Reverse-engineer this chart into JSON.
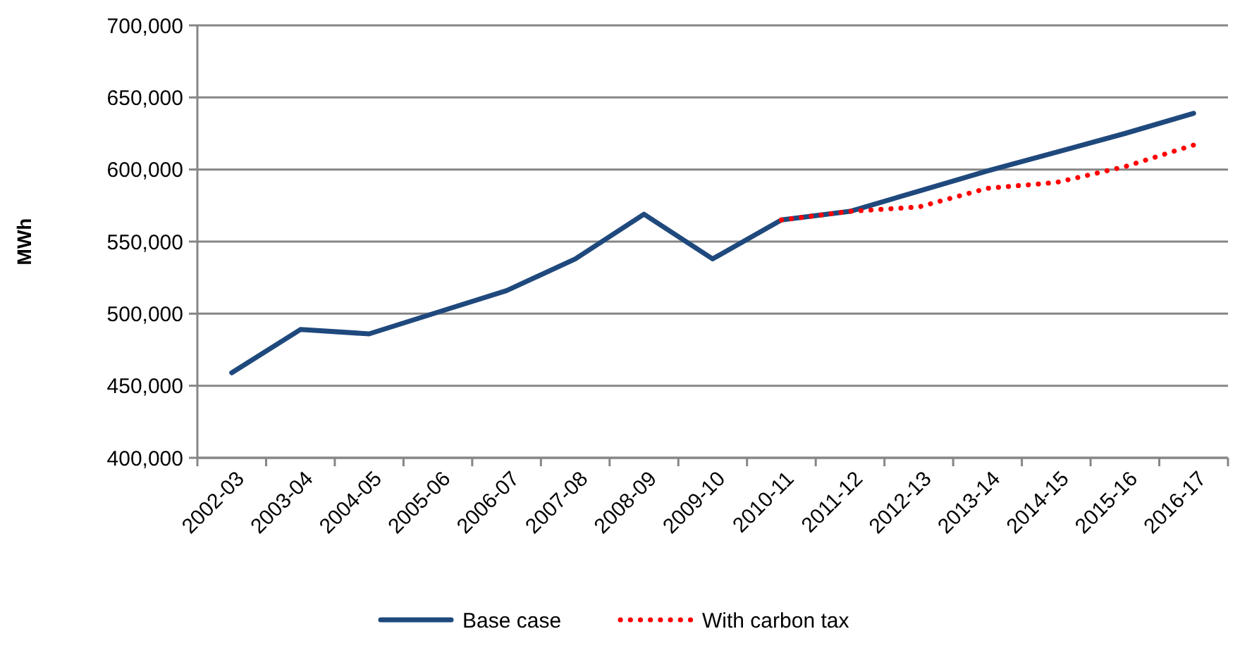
{
  "chart_data": {
    "type": "line",
    "ylabel": "MWh",
    "categories": [
      "2002-03",
      "2003-04",
      "2004-05",
      "2005-06",
      "2006-07",
      "2007-08",
      "2008-09",
      "2009-10",
      "2010-11",
      "2011-12",
      "2012-13",
      "2013-14",
      "2014-15",
      "2015-16",
      "2016-17"
    ],
    "series": [
      {
        "name": "Base case",
        "color": "#1f497d",
        "line_style": "solid",
        "values": [
          459000,
          489000,
          486000,
          501000,
          516000,
          538000,
          569000,
          538000,
          565000,
          571000,
          585000,
          599000,
          612000,
          625000,
          639000
        ]
      },
      {
        "name": "With carbon tax",
        "color": "#ff0000",
        "line_style": "dotted",
        "values": [
          null,
          null,
          null,
          null,
          null,
          null,
          null,
          null,
          565000,
          571000,
          574000,
          587000,
          591000,
          602000,
          617000
        ]
      }
    ],
    "ylim": [
      400000,
      700000
    ],
    "yticks": [
      {
        "value": 400000,
        "label": "400,000"
      },
      {
        "value": 450000,
        "label": "450,000"
      },
      {
        "value": 500000,
        "label": "500,000"
      },
      {
        "value": 550000,
        "label": "550,000"
      },
      {
        "value": 600000,
        "label": "600,000"
      },
      {
        "value": 650000,
        "label": "650,000"
      },
      {
        "value": 700000,
        "label": "700,000"
      }
    ],
    "grid": "y",
    "legend": "bottom",
    "marker": "none"
  }
}
